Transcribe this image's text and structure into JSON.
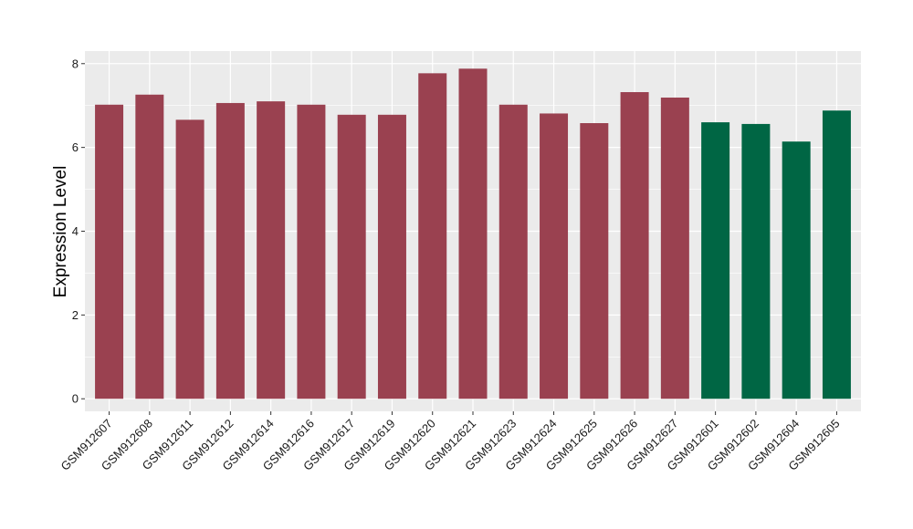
{
  "chart_data": {
    "type": "bar",
    "title": "",
    "xlabel": "",
    "ylabel": "Expression Level",
    "ylim": [
      -0.3,
      8.3
    ],
    "yticks": [
      0,
      2,
      4,
      6,
      8
    ],
    "grid": true,
    "colors": {
      "group_a": "#9A4150",
      "group_b": "#006644",
      "panel": "#EBEBEB",
      "grid": "#FFFFFF"
    },
    "categories": [
      "GSM912607",
      "GSM912608",
      "GSM912611",
      "GSM912612",
      "GSM912614",
      "GSM912616",
      "GSM912617",
      "GSM912619",
      "GSM912620",
      "GSM912621",
      "GSM912623",
      "GSM912624",
      "GSM912625",
      "GSM912626",
      "GSM912627",
      "GSM912601",
      "GSM912602",
      "GSM912604",
      "GSM912605"
    ],
    "values": [
      7.02,
      7.26,
      6.66,
      7.06,
      7.1,
      7.02,
      6.78,
      6.78,
      7.77,
      7.88,
      7.02,
      6.81,
      6.58,
      7.32,
      7.19,
      6.6,
      6.56,
      6.14,
      6.88
    ],
    "groups": [
      "group_a",
      "group_a",
      "group_a",
      "group_a",
      "group_a",
      "group_a",
      "group_a",
      "group_a",
      "group_a",
      "group_a",
      "group_a",
      "group_a",
      "group_a",
      "group_a",
      "group_a",
      "group_b",
      "group_b",
      "group_b",
      "group_b"
    ]
  }
}
